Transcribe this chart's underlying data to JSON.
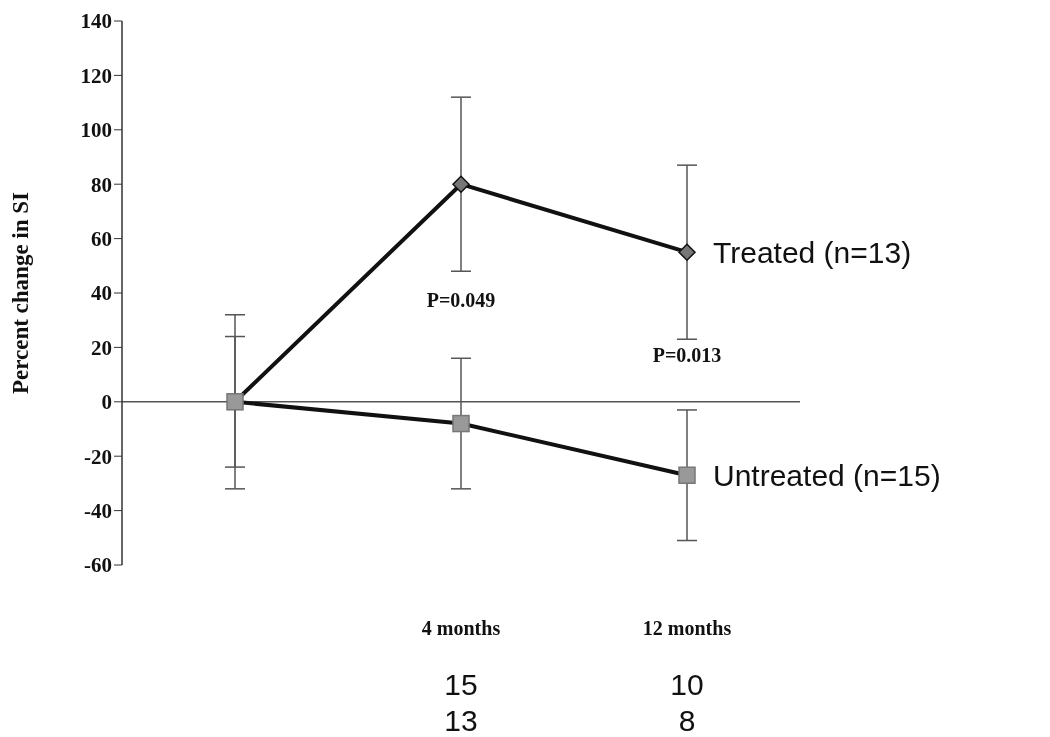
{
  "chart_data": {
    "type": "line",
    "ylabel": "Percent change in SI",
    "categories": [
      null,
      "4 months",
      "12 months"
    ],
    "series": [
      {
        "name": "Treated (n=13)",
        "color": "#111111",
        "marker": "diamond",
        "values": [
          0,
          80,
          55
        ],
        "errors": [
          32,
          32,
          32
        ]
      },
      {
        "name": "Untreated (n=15)",
        "color": "#111111",
        "marker": "square",
        "values": [
          0,
          -8,
          -27
        ],
        "errors": [
          24,
          24,
          24
        ]
      }
    ],
    "ylim": [
      -60,
      140
    ],
    "yticks": [
      -60,
      -40,
      -20,
      0,
      20,
      40,
      60,
      80,
      100,
      120,
      140
    ],
    "grid": false,
    "legend": false,
    "ref_lines": [
      {
        "axis": "y",
        "value": 0
      }
    ],
    "annotations": [
      "P=0.049",
      "P=0.013",
      "15",
      "13",
      "10",
      "8"
    ]
  }
}
